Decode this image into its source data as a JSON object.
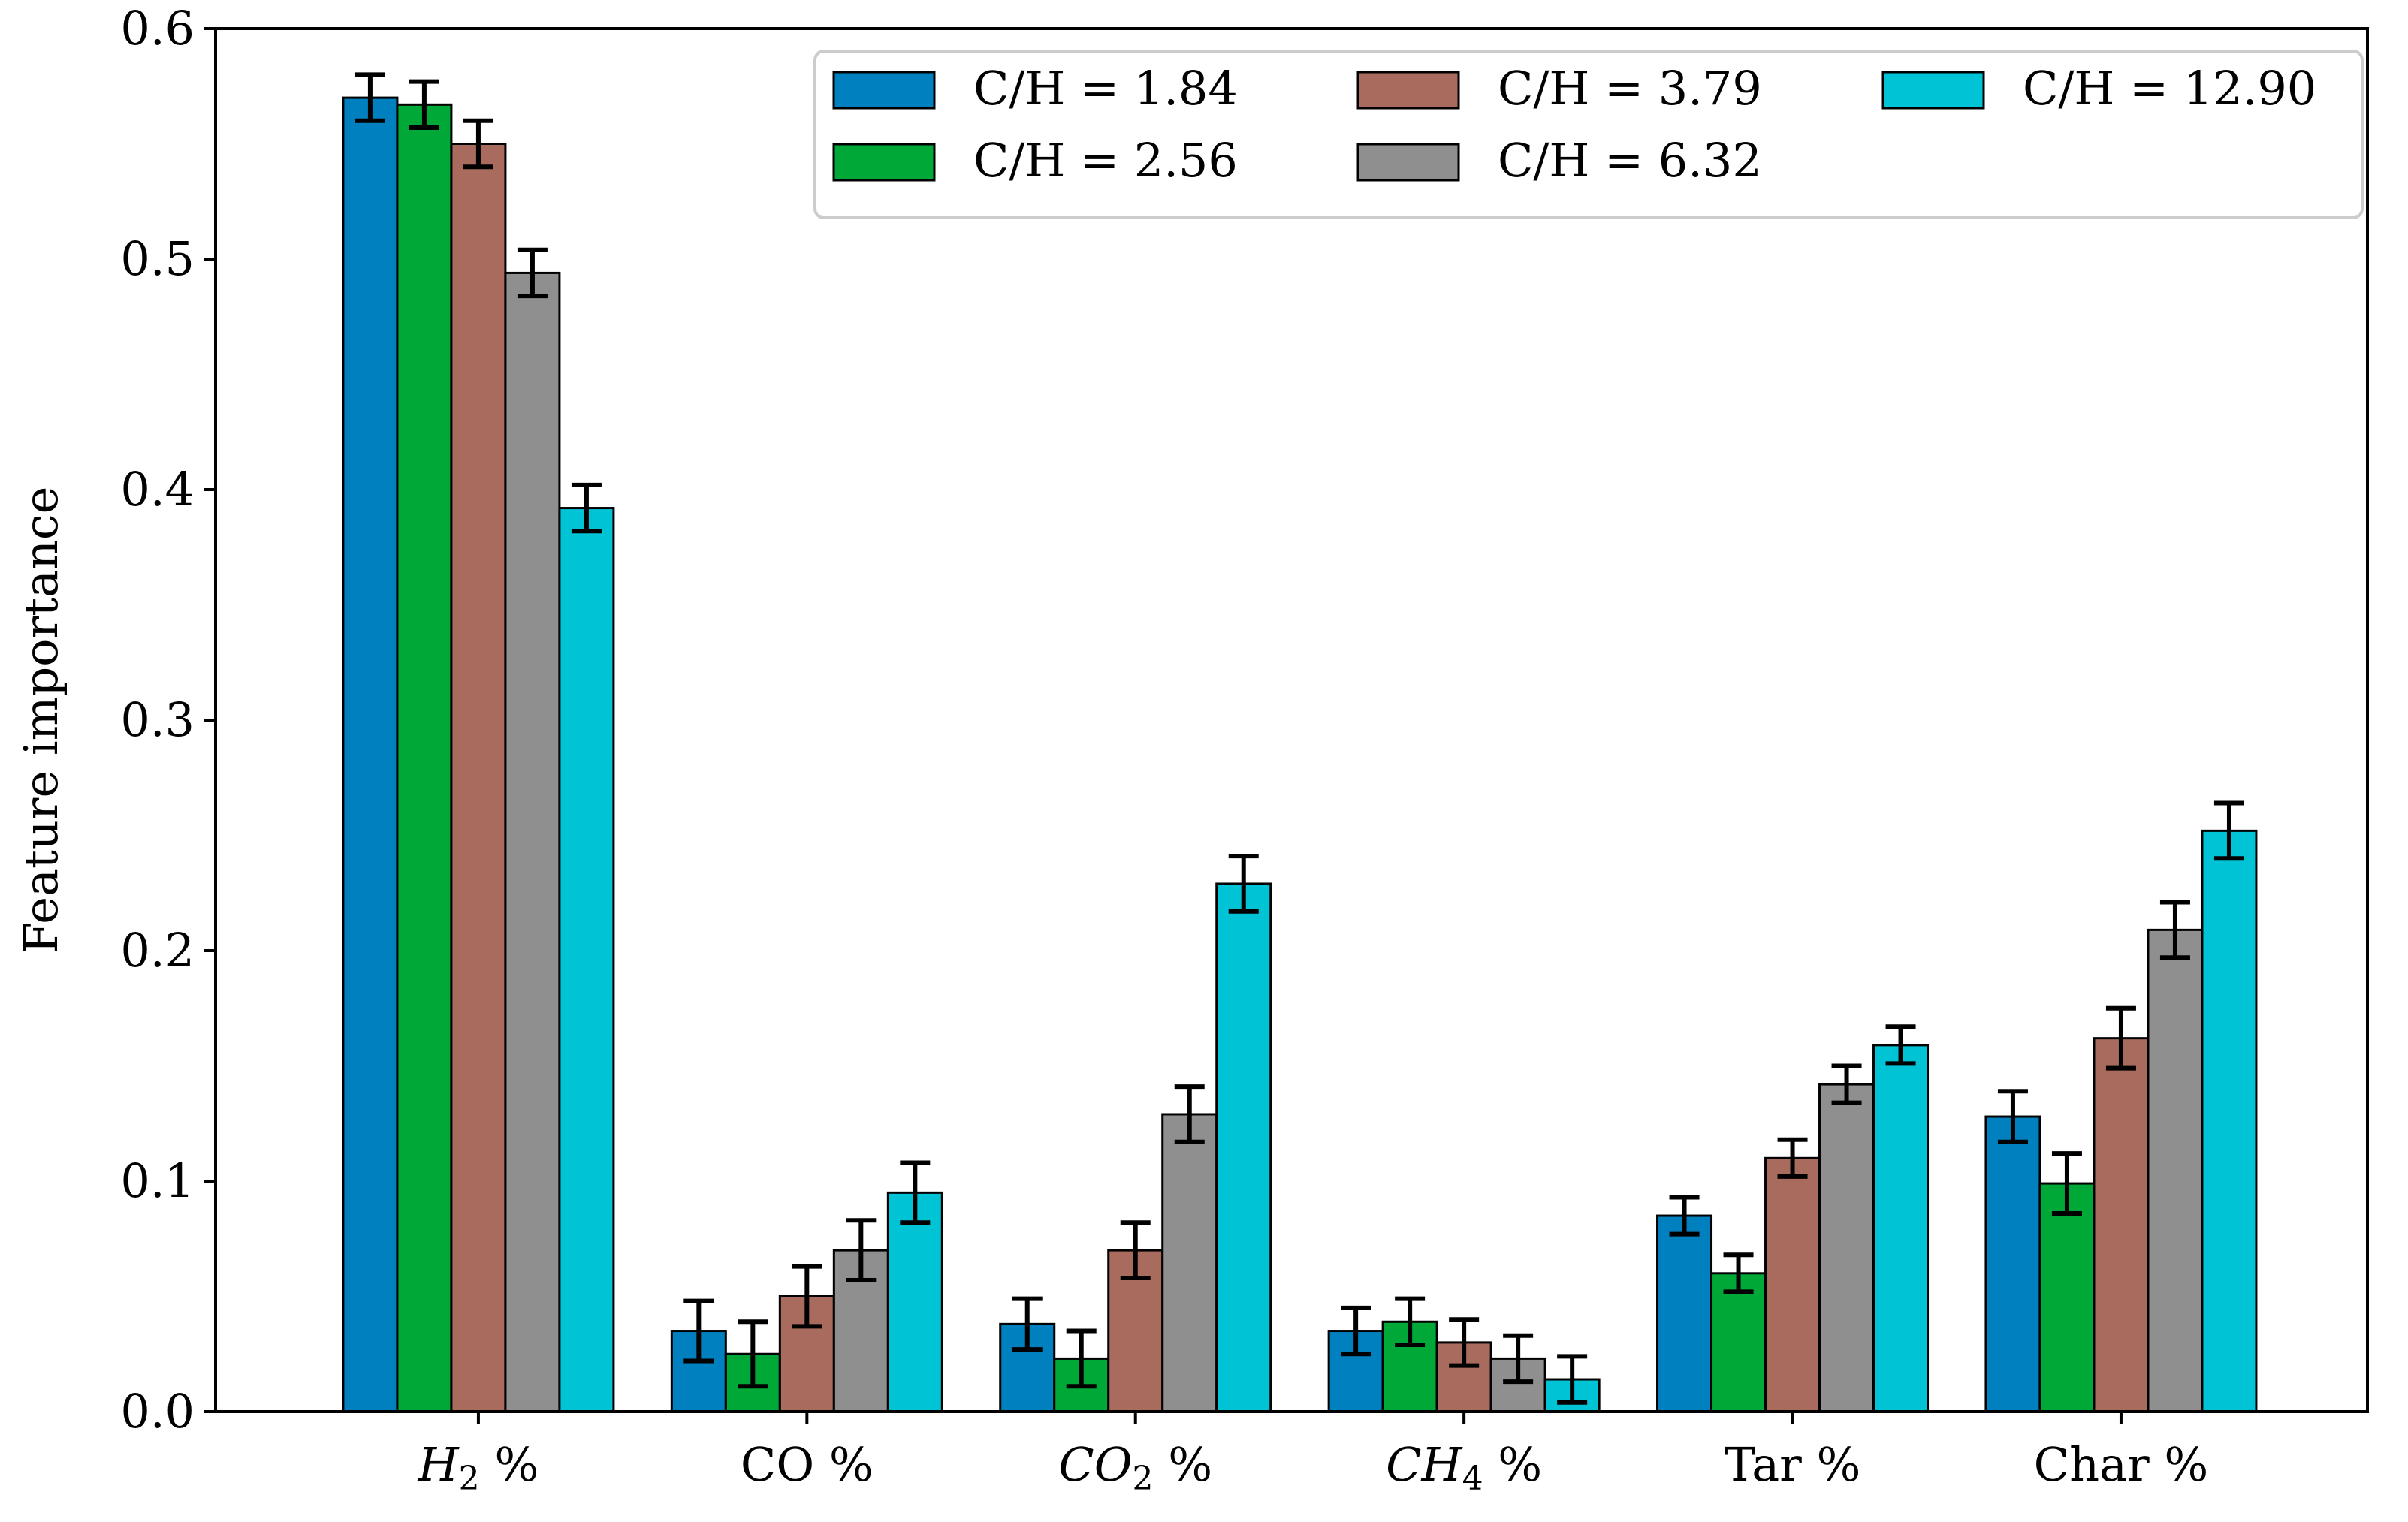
{
  "chart_data": {
    "type": "bar",
    "title": "",
    "xlabel": "",
    "ylabel": "Feature importance",
    "ylim": [
      0,
      0.6
    ],
    "yticks": [
      "0.0",
      "0.1",
      "0.2",
      "0.3",
      "0.4",
      "0.5",
      "0.6"
    ],
    "categories": [
      {
        "label": "H",
        "sub": "2",
        "suffix": " %",
        "italic": true
      },
      {
        "label": "CO %",
        "sub": "",
        "suffix": "",
        "italic": false
      },
      {
        "label": "CO",
        "sub": "2",
        "suffix": " %",
        "italic": true
      },
      {
        "label": "CH",
        "sub": "4",
        "suffix": " %",
        "italic": true
      },
      {
        "label": "Tar %",
        "sub": "",
        "suffix": "",
        "italic": false
      },
      {
        "label": "Char %",
        "sub": "",
        "suffix": "",
        "italic": false
      }
    ],
    "series": [
      {
        "name": "C/H = 1.84",
        "color": "#0080BF",
        "values": [
          0.57,
          0.035,
          0.038,
          0.035,
          0.085,
          0.128
        ],
        "errors": [
          0.01,
          0.013,
          0.011,
          0.01,
          0.008,
          0.011
        ]
      },
      {
        "name": "C/H = 2.56",
        "color": "#00A838",
        "values": [
          0.567,
          0.025,
          0.023,
          0.039,
          0.06,
          0.099
        ],
        "errors": [
          0.01,
          0.014,
          0.012,
          0.01,
          0.008,
          0.013
        ]
      },
      {
        "name": "C/H = 3.79",
        "color": "#A86B5E",
        "values": [
          0.55,
          0.05,
          0.07,
          0.03,
          0.11,
          0.162
        ],
        "errors": [
          0.01,
          0.013,
          0.012,
          0.01,
          0.008,
          0.013
        ]
      },
      {
        "name": "C/H = 6.32",
        "color": "#8F8F8F",
        "values": [
          0.494,
          0.07,
          0.129,
          0.023,
          0.142,
          0.209
        ],
        "errors": [
          0.01,
          0.013,
          0.012,
          0.01,
          0.008,
          0.012
        ]
      },
      {
        "name": "C/H = 12.90",
        "color": "#00C4D6",
        "values": [
          0.392,
          0.095,
          0.229,
          0.014,
          0.159,
          0.252
        ],
        "errors": [
          0.01,
          0.013,
          0.012,
          0.01,
          0.008,
          0.012
        ]
      }
    ],
    "legend": {
      "placement": "top-right",
      "columns": 3
    },
    "grid": false
  }
}
